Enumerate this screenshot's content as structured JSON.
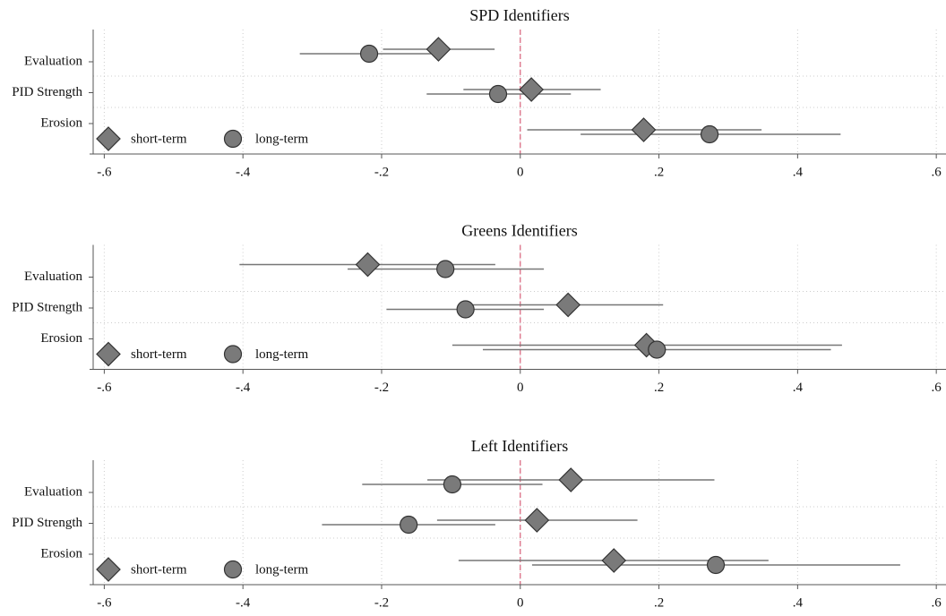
{
  "chart_data": [
    {
      "type": "dot",
      "title": "SPD Identifiers",
      "categories": [
        "Evaluation",
        "PID Strength",
        "Erosion"
      ],
      "series": [
        {
          "name": "short-term",
          "marker": "diamond",
          "color": "#7a7a7a",
          "values": [
            -0.118,
            0.016,
            0.178
          ],
          "lower": [
            -0.198,
            -0.082,
            0.01
          ],
          "upper": [
            -0.037,
            0.116,
            0.348
          ]
        },
        {
          "name": "long-term",
          "marker": "circle",
          "color": "#7a7a7a",
          "values": [
            -0.218,
            -0.032,
            0.273
          ],
          "lower": [
            -0.318,
            -0.135,
            0.087
          ],
          "upper": [
            -0.12,
            0.073,
            0.462
          ]
        }
      ],
      "xlim": [
        -0.616,
        0.614
      ],
      "xticks": [
        {
          "value": -0.6,
          "label": "-.6"
        },
        {
          "value": -0.4,
          "label": "-.4"
        },
        {
          "value": -0.2,
          "label": "-.2"
        },
        0,
        {
          "value": 0.2,
          "label": ".2"
        },
        {
          "value": 0.4,
          "label": ".4"
        },
        {
          "value": 0.6,
          "label": ".6"
        }
      ],
      "reference_line": 0,
      "grid": true,
      "legend": "lower-left"
    },
    {
      "type": "dot",
      "title": "Greens Identifiers",
      "categories": [
        "Evaluation",
        "PID Strength",
        "Erosion"
      ],
      "series": [
        {
          "name": "short-term",
          "marker": "diamond",
          "color": "#7a7a7a",
          "values": [
            -0.22,
            0.069,
            0.182
          ],
          "lower": [
            -0.405,
            -0.069,
            -0.098
          ],
          "upper": [
            -0.036,
            0.206,
            0.464
          ]
        },
        {
          "name": "long-term",
          "marker": "circle",
          "color": "#7a7a7a",
          "values": [
            -0.108,
            -0.079,
            0.197
          ],
          "lower": [
            -0.249,
            -0.193,
            -0.054
          ],
          "upper": [
            0.034,
            0.034,
            0.448
          ]
        }
      ],
      "xlim": [
        -0.616,
        0.614
      ],
      "xticks": [
        {
          "value": -0.6,
          "label": "-.6"
        },
        {
          "value": -0.4,
          "label": "-.4"
        },
        {
          "value": -0.2,
          "label": "-.2"
        },
        0,
        {
          "value": 0.2,
          "label": ".2"
        },
        {
          "value": 0.4,
          "label": ".4"
        },
        {
          "value": 0.6,
          "label": ".6"
        }
      ],
      "reference_line": 0,
      "grid": true,
      "legend": "lower-left"
    },
    {
      "type": "dot",
      "title": "Left Identifiers",
      "categories": [
        "Evaluation",
        "PID Strength",
        "Erosion"
      ],
      "series": [
        {
          "name": "short-term",
          "marker": "diamond",
          "color": "#7a7a7a",
          "values": [
            0.073,
            0.024,
            0.135
          ],
          "lower": [
            -0.134,
            -0.12,
            -0.089
          ],
          "upper": [
            0.28,
            0.169,
            0.358
          ]
        },
        {
          "name": "long-term",
          "marker": "circle",
          "color": "#7a7a7a",
          "values": [
            -0.098,
            -0.161,
            0.282
          ],
          "lower": [
            -0.228,
            -0.286,
            0.017
          ],
          "upper": [
            0.032,
            -0.036,
            0.548
          ]
        }
      ],
      "xlim": [
        -0.616,
        0.614
      ],
      "xticks": [
        {
          "value": -0.6,
          "label": "-.6"
        },
        {
          "value": -0.4,
          "label": "-.4"
        },
        {
          "value": -0.2,
          "label": "-.2"
        },
        0,
        {
          "value": 0.2,
          "label": ".2"
        },
        {
          "value": 0.4,
          "label": ".4"
        },
        {
          "value": 0.6,
          "label": ".6"
        }
      ],
      "reference_line": 0,
      "grid": true,
      "legend": "lower-left"
    }
  ]
}
